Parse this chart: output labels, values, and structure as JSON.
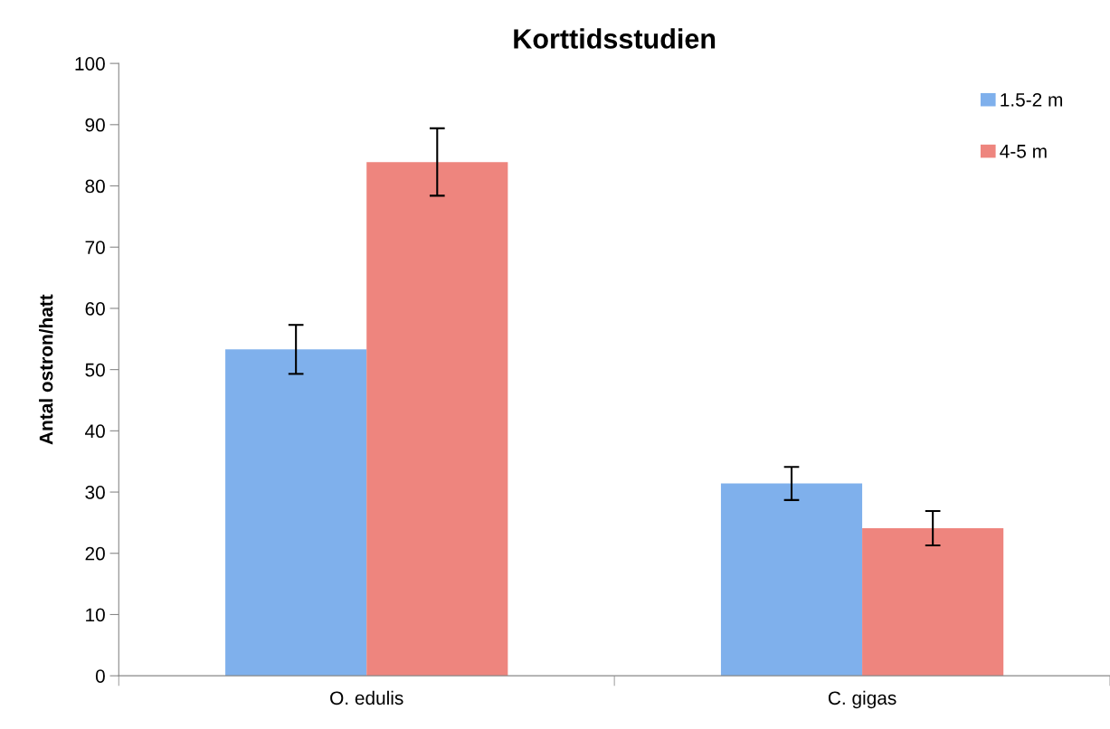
{
  "chart_data": {
    "type": "bar",
    "title": "Korttidsstudien",
    "ylabel": "Antal ostron/hatt",
    "categories": [
      "O. edulis",
      "C. gigas"
    ],
    "series": [
      {
        "name": "1.5-2 m",
        "color": "#7fb0ec",
        "values": [
          53.3,
          31.4
        ],
        "errors": [
          4.0,
          2.7
        ]
      },
      {
        "name": "4-5 m",
        "color": "#ee857e",
        "values": [
          83.9,
          24.1
        ],
        "errors": [
          5.5,
          2.8
        ]
      }
    ],
    "ylim": [
      0,
      100
    ],
    "yticks": [
      0,
      10,
      20,
      30,
      40,
      50,
      60,
      70,
      80,
      90,
      100
    ],
    "grid": false,
    "legend": "top right"
  }
}
